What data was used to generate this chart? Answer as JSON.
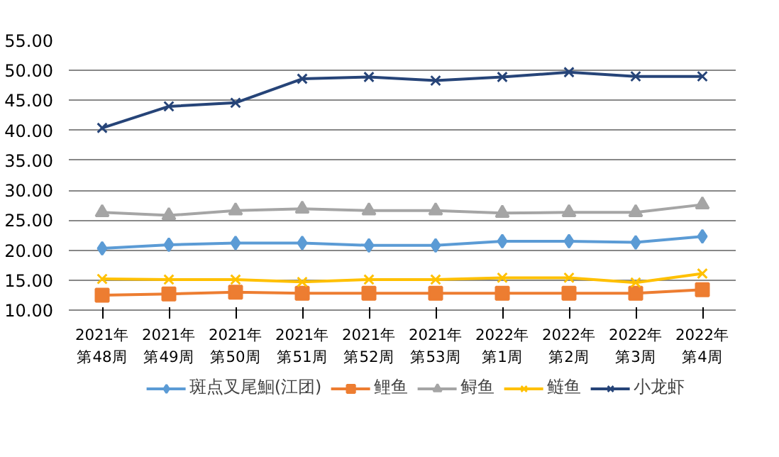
{
  "chart_data": {
    "type": "line",
    "categories": [
      "2021年第48周",
      "2021年第49周",
      "2021年第50周",
      "2021年第51周",
      "2021年第52周",
      "2021年第53周",
      "2022年第1周",
      "2022年第2周",
      "2022年第3周",
      "2022年第4周"
    ],
    "ylim": [
      10,
      55
    ],
    "yticks": [
      {
        "value": 10,
        "label": "10.00"
      },
      {
        "value": 15,
        "label": "15.00"
      },
      {
        "value": 20,
        "label": "20.00"
      },
      {
        "value": 25,
        "label": "25.00"
      },
      {
        "value": 30,
        "label": "30.00"
      },
      {
        "value": 35,
        "label": "35.00"
      },
      {
        "value": 40,
        "label": "40.00"
      },
      {
        "value": 45,
        "label": "45.00"
      },
      {
        "value": 50,
        "label": "50.00"
      },
      {
        "value": 55,
        "label": "55.00"
      }
    ],
    "grid": "y",
    "legend": "bottom",
    "line_style": "solid",
    "series": [
      {
        "name": "斑点叉尾鮰(江团)",
        "color": "#5b9bd5",
        "marker": "diamond",
        "values": [
          20.3,
          20.9,
          21.2,
          21.2,
          20.8,
          20.8,
          21.5,
          21.5,
          21.3,
          22.3
        ]
      },
      {
        "name": "鲤鱼",
        "color": "#ed7d31",
        "marker": "square",
        "values": [
          12.5,
          12.7,
          13.0,
          12.8,
          12.8,
          12.8,
          12.8,
          12.8,
          12.8,
          13.4
        ]
      },
      {
        "name": "鲟鱼",
        "color": "#a5a5a5",
        "marker": "triangle",
        "values": [
          26.3,
          25.8,
          26.6,
          26.9,
          26.6,
          26.6,
          26.2,
          26.3,
          26.3,
          27.6
        ]
      },
      {
        "name": "鲢鱼",
        "color": "#ffc000",
        "marker": "cross",
        "values": [
          15.2,
          15.1,
          15.1,
          14.7,
          15.1,
          15.1,
          15.4,
          15.4,
          14.6,
          16.1
        ]
      },
      {
        "name": "小龙虾",
        "color": "#264478",
        "marker": "cross",
        "values": [
          40.4,
          44.0,
          44.6,
          48.6,
          48.9,
          48.3,
          48.9,
          49.7,
          49.0,
          49.0
        ]
      }
    ]
  }
}
